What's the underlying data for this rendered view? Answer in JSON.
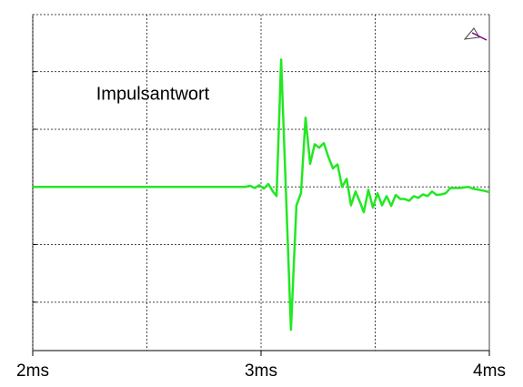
{
  "chart_data": {
    "type": "line",
    "annotation": "Impulsantwort",
    "x": [
      2.0,
      2.932,
      2.952,
      2.972,
      2.992,
      3.012,
      3.032,
      3.052,
      3.068,
      3.088,
      3.131,
      3.155,
      3.175,
      3.195,
      3.215,
      3.235,
      3.255,
      3.275,
      3.295,
      3.315,
      3.335,
      3.355,
      3.375,
      3.394,
      3.414,
      3.434,
      3.45,
      3.47,
      3.49,
      3.51,
      3.53,
      3.55,
      3.57,
      3.59,
      3.61,
      3.629,
      3.649,
      3.669,
      3.689,
      3.709,
      3.729,
      3.749,
      3.769,
      3.789,
      3.809,
      3.829,
      3.869,
      3.908,
      3.928,
      3.968,
      4.0
    ],
    "series": [
      {
        "color": "#22e822",
        "values": [
          0,
          0,
          0.02,
          -0.02,
          0.03,
          -0.03,
          0.05,
          -0.08,
          -0.16,
          2.21,
          -2.48,
          -0.32,
          -0.11,
          1.2,
          0.4,
          0.74,
          0.68,
          0.76,
          0.52,
          0.32,
          0.39,
          0,
          0.14,
          -0.32,
          -0.08,
          -0.27,
          -0.44,
          -0.05,
          -0.36,
          -0.11,
          -0.32,
          -0.16,
          -0.33,
          -0.14,
          -0.21,
          -0.21,
          -0.24,
          -0.16,
          -0.19,
          -0.13,
          -0.16,
          -0.08,
          -0.14,
          -0.13,
          -0.11,
          -0.02,
          -0.02,
          0,
          -0.03,
          -0.06,
          -0.09
        ]
      }
    ],
    "xlim": [
      2,
      4
    ],
    "xticks": [
      {
        "value": 2,
        "label": "2ms"
      },
      {
        "value": 3,
        "label": "3ms"
      },
      {
        "value": 4,
        "label": "4ms"
      }
    ],
    "xgrid": [
      2.5,
      3.5
    ],
    "ylim": [
      -2.84,
      2.99
    ],
    "yticks": [
      -2,
      -1,
      0,
      1,
      2
    ],
    "grid": true
  }
}
